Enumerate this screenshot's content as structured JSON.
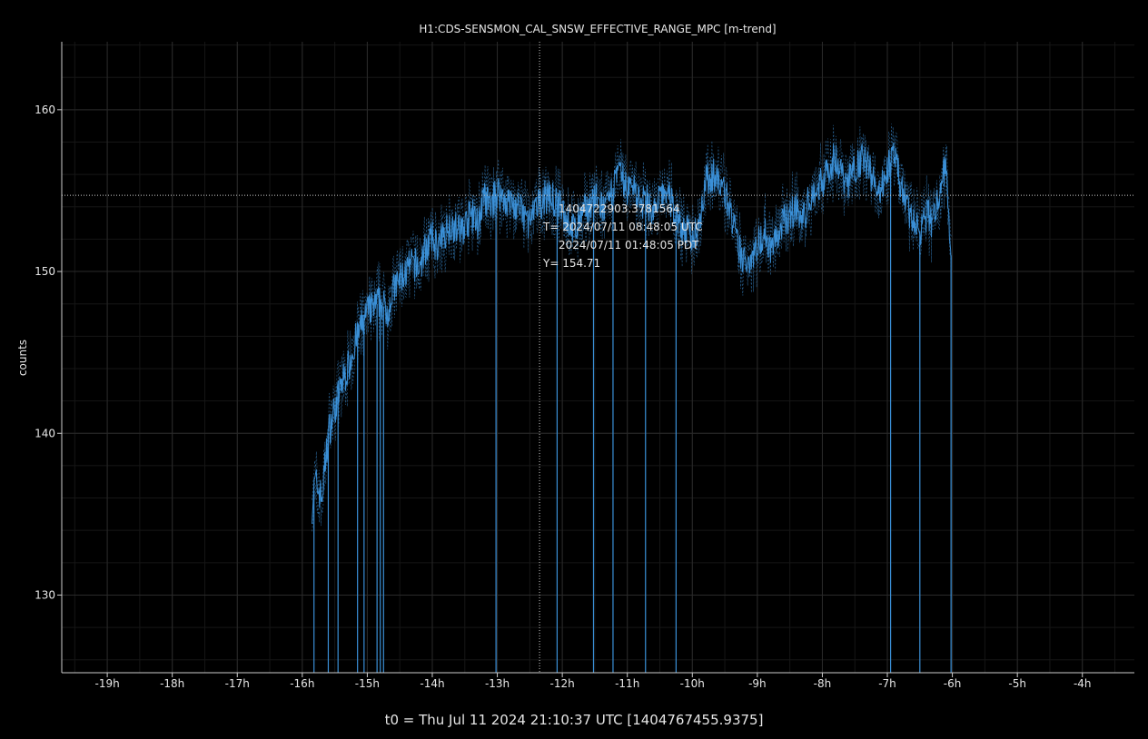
{
  "chart_data": {
    "type": "line",
    "title": "H1:CDS-SENSMON_CAL_SNSW_EFFECTIVE_RANGE_MPC [m-trend]",
    "xlabel": "t0 = Thu Jul 11 2024 21:10:37 UTC [1404767455.9375]",
    "ylabel": "counts",
    "xlim": [
      -19.7,
      -3.2
    ],
    "ylim": [
      125.2,
      164.2
    ],
    "x_ticks": [
      -19,
      -18,
      -17,
      -16,
      -15,
      -14,
      -13,
      -12,
      -11,
      -10,
      -9,
      -8,
      -7,
      -6,
      -5,
      -4
    ],
    "x_tick_labels": [
      "-19h",
      "-18h",
      "-17h",
      "-16h",
      "-15h",
      "-14h",
      "-13h",
      "-12h",
      "-11h",
      "-10h",
      "-9h",
      "-8h",
      "-7h",
      "-6h",
      "-5h",
      "-4h"
    ],
    "y_ticks": [
      130,
      140,
      150,
      160
    ],
    "y_tick_labels": [
      "130",
      "140",
      "150",
      "160"
    ],
    "grid": true,
    "series": [
      {
        "x": [
          -15.85,
          -15.8,
          -15.7,
          -15.6,
          -15.5,
          -15.4,
          -15.3,
          -15.2,
          -15.1,
          -15.0,
          -14.9,
          -14.8,
          -14.7,
          -14.6,
          -14.5,
          -14.4,
          -14.3,
          -14.2,
          -14.1,
          -14.0,
          -13.9,
          -13.8,
          -13.7,
          -13.6,
          -13.5,
          -13.4,
          -13.3,
          -13.2,
          -13.1,
          -13.0,
          -12.9,
          -12.8,
          -12.7,
          -12.6,
          -12.5,
          -12.4,
          -12.3,
          -12.2,
          -12.1,
          -12.0,
          -11.9,
          -11.8,
          -11.7,
          -11.6,
          -11.5,
          -11.4,
          -11.3,
          -11.2,
          -11.1,
          -11.0,
          -10.9,
          -10.8,
          -10.7,
          -10.6,
          -10.5,
          -10.4,
          -10.3,
          -10.2,
          -10.1,
          -10.0,
          -9.9,
          -9.8,
          -9.7,
          -9.6,
          -9.5,
          -9.4,
          -9.3,
          -9.2,
          -9.1,
          -9.0,
          -8.9,
          -8.8,
          -8.7,
          -8.6,
          -8.5,
          -8.4,
          -8.3,
          -8.2,
          -8.1,
          -8.0,
          -7.9,
          -7.8,
          -7.7,
          -7.6,
          -7.5,
          -7.4,
          -7.3,
          -7.2,
          -7.1,
          -7.0,
          -6.9,
          -6.8,
          -6.7,
          -6.6,
          -6.5,
          -6.4,
          -6.3,
          -6.2,
          -6.1,
          -6.02
        ],
        "y": [
          135.5,
          137.0,
          136.0,
          140.0,
          141.5,
          143.0,
          144.0,
          145.5,
          146.5,
          147.5,
          147.8,
          148.2,
          147.5,
          148.8,
          149.5,
          150.0,
          150.5,
          150.2,
          151.5,
          152.0,
          151.5,
          152.5,
          153.0,
          152.5,
          152.8,
          153.5,
          153.0,
          154.5,
          154.0,
          155.0,
          154.5,
          154.2,
          154.0,
          153.5,
          153.0,
          153.8,
          154.5,
          154.7,
          154.2,
          153.8,
          153.0,
          152.5,
          153.5,
          154.0,
          154.5,
          154.0,
          153.8,
          155.5,
          156.0,
          155.0,
          155.5,
          154.0,
          154.5,
          153.5,
          154.5,
          155.0,
          154.0,
          153.0,
          152.5,
          152.0,
          153.0,
          155.5,
          156.0,
          155.5,
          155.0,
          153.5,
          151.5,
          150.5,
          151.0,
          151.5,
          152.5,
          151.5,
          152.0,
          153.0,
          153.5,
          154.0,
          153.0,
          154.5,
          155.0,
          155.5,
          156.5,
          157.0,
          156.0,
          155.5,
          156.5,
          157.0,
          156.5,
          155.5,
          155.0,
          156.5,
          157.0,
          155.5,
          154.0,
          153.0,
          152.5,
          153.5,
          153.0,
          155.0,
          156.5,
          151.0
        ]
      }
    ],
    "dropouts": [
      -15.82,
      -15.6,
      -15.45,
      -15.15,
      -15.05,
      -14.85,
      -14.8,
      -14.75,
      -13.02,
      -12.08,
      -11.52,
      -11.22,
      -10.72,
      -10.25,
      -6.95,
      -6.5,
      -6.02
    ]
  },
  "cursor": {
    "x": -12.35,
    "y": 154.71,
    "gps": "1404722903.3781564",
    "t_utc": "T= 2024/07/11 08:48:05 UTC",
    "t_pdt": "2024/07/11 01:48:05 PDT",
    "y_label": "Y= 154.71"
  },
  "colors": {
    "background": "#000000",
    "line": "#3a8fd6",
    "grid": "#2a2a2a",
    "axis": "#cccccc",
    "text": "#e6e6e6"
  }
}
